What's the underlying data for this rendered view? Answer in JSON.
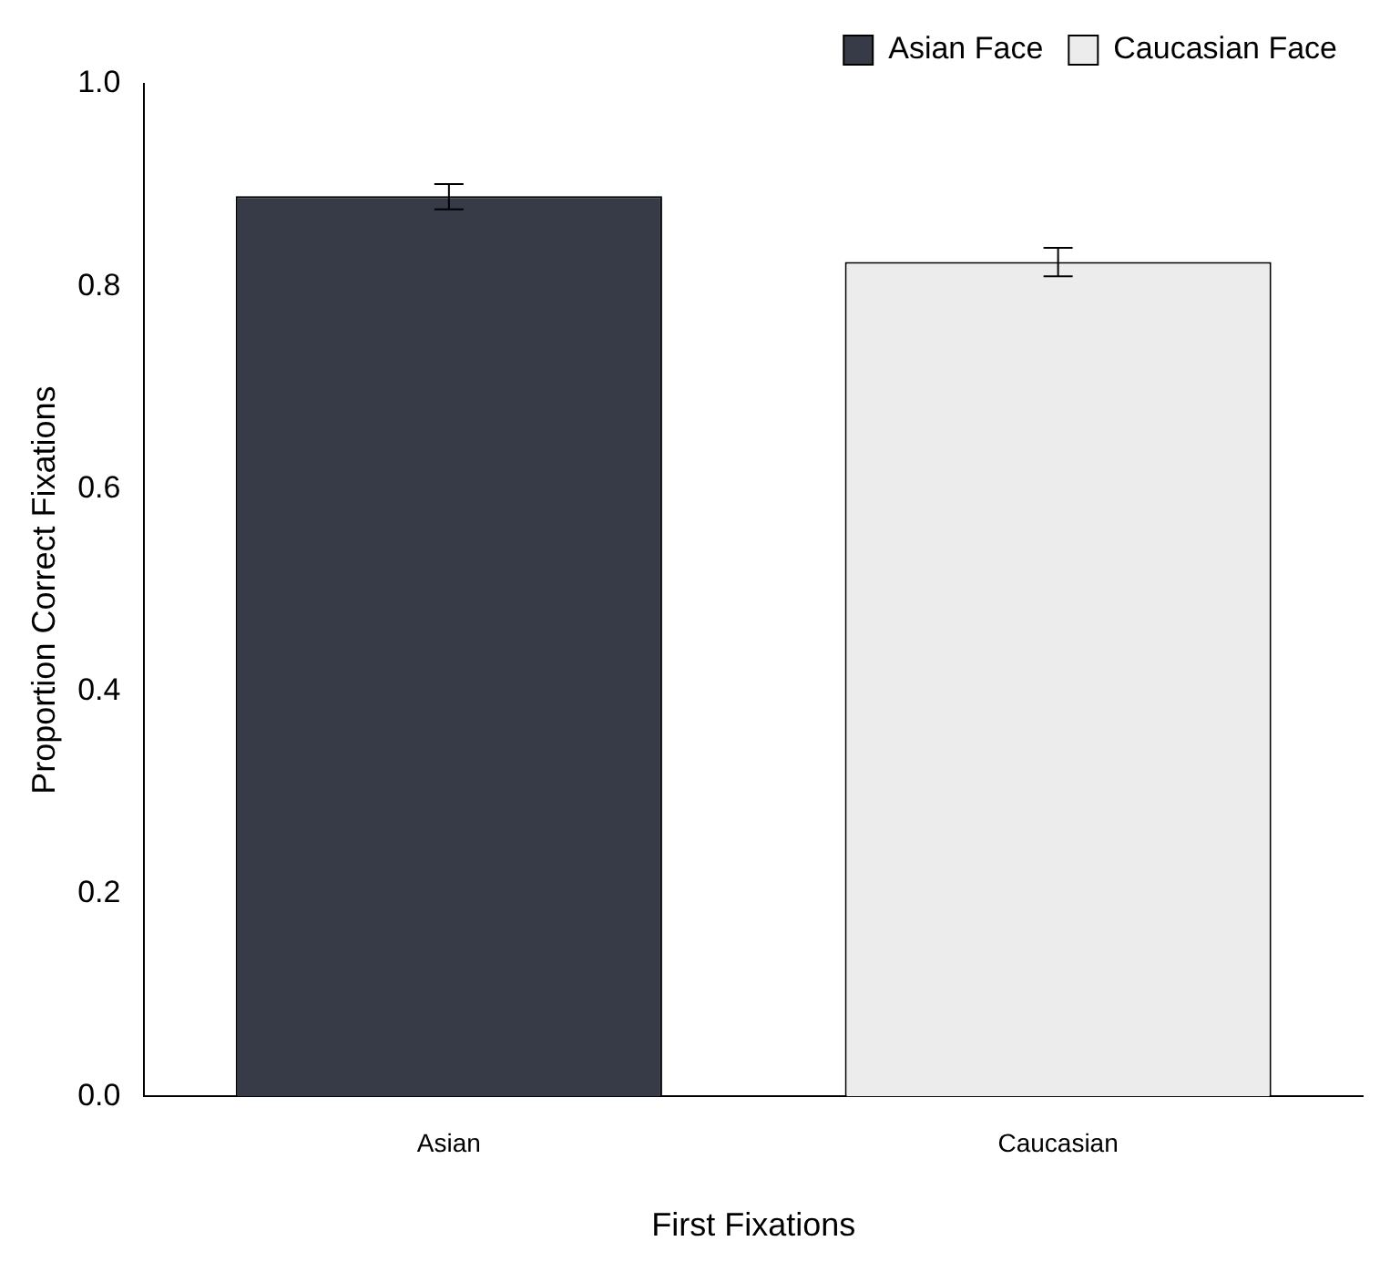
{
  "chart_data": {
    "type": "bar",
    "xlabel": "First Fixations",
    "ylabel": "Proportion Correct Fixations",
    "categories": [
      "Asian",
      "Caucasian"
    ],
    "series": [
      {
        "name": "Asian Face",
        "color": "#363b47",
        "values": [
          0.889,
          null
        ],
        "errors": [
          [
            0.876,
            0.901
          ],
          null
        ]
      },
      {
        "name": "Caucasian Face",
        "color": "#ececec",
        "values": [
          null,
          0.824
        ],
        "errors": [
          null,
          [
            0.81,
            0.838
          ]
        ]
      }
    ],
    "ylim": [
      0,
      1
    ],
    "yticks": [
      {
        "value": 0,
        "label": "0.0"
      },
      {
        "value": 0.2,
        "label": "0.2"
      },
      {
        "value": 0.4,
        "label": "0.4"
      },
      {
        "value": 0.6,
        "label": "0.6"
      },
      {
        "value": 0.8,
        "label": "0.8"
      },
      {
        "value": 1,
        "label": "1.0"
      }
    ],
    "grid": false,
    "legend": "top right"
  }
}
